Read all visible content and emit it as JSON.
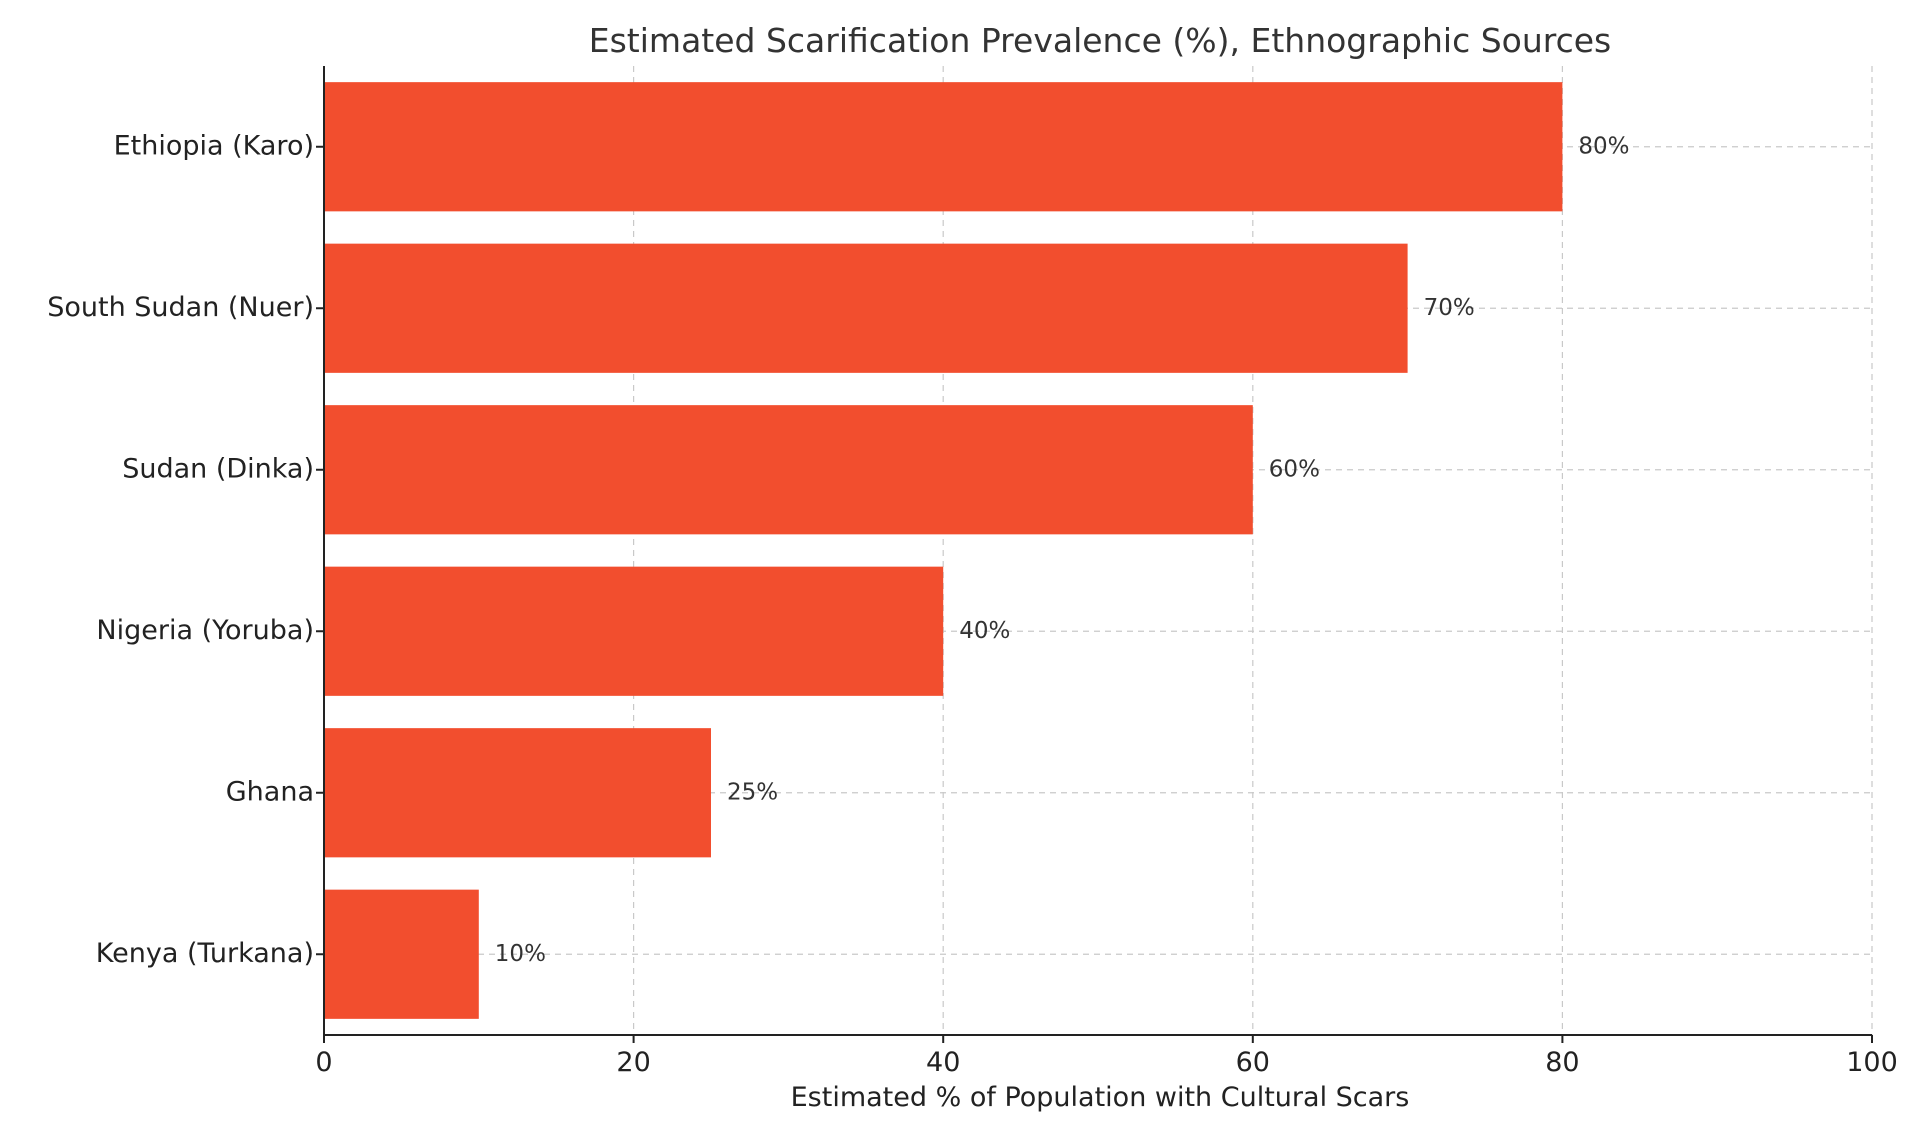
{
  "chart_data": {
    "type": "bar",
    "orientation": "horizontal",
    "title": "Estimated Scarification Prevalence (%), Ethnographic Sources",
    "xlabel": "Estimated % of Population with Cultural Scars",
    "ylabel": "",
    "xlim": [
      0,
      100
    ],
    "xticks": [
      0,
      20,
      40,
      60,
      80,
      100
    ],
    "grid": true,
    "categories": [
      "Ethiopia (Karo)",
      "South Sudan (Nuer)",
      "Sudan (Dinka)",
      "Nigeria (Yoruba)",
      "Ghana",
      "Kenya (Turkana)"
    ],
    "values": [
      80,
      70,
      60,
      40,
      25,
      10
    ],
    "data_labels": [
      "80%",
      "70%",
      "60%",
      "40%",
      "25%",
      "10%"
    ],
    "bar_color": "#f24e2e"
  }
}
